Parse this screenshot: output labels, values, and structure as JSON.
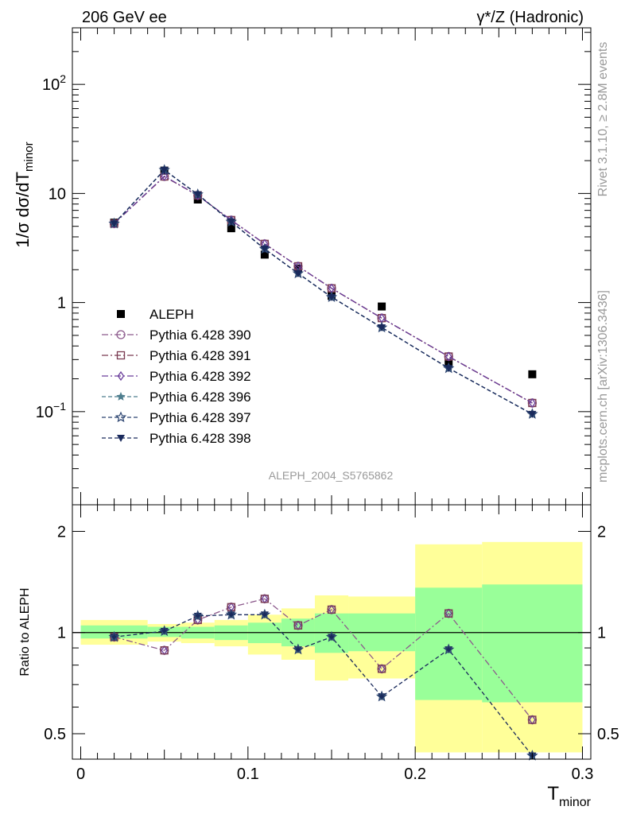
{
  "header": {
    "left": "206 GeV ee",
    "right": "γ*/Z (Hadronic)"
  },
  "side_labels": {
    "rivet": "Rivet 3.1.10, ≥ 2.8M events",
    "mcplots": "mcplots.cern.ch [arXiv:1306.3436]"
  },
  "analysis_id": "ALEPH_2004_S5765862",
  "chart_data": [
    {
      "type": "scatter",
      "panel": "main",
      "ylabel_parts": {
        "a": "1/σ  dσ/dT",
        "sub": "minor"
      },
      "yscale": "log",
      "ylim": [
        0.014,
        330
      ],
      "xlim": [
        -0.005,
        0.305
      ],
      "y_ticks": [
        {
          "v": 100,
          "base": "10",
          "exp": "2"
        },
        {
          "v": 10,
          "base": "10",
          "exp": ""
        },
        {
          "v": 1,
          "base": "1",
          "exp": ""
        },
        {
          "v": 0.1,
          "base": "10",
          "exp": "−1"
        }
      ],
      "legend_position": "left",
      "x": [
        0.02,
        0.05,
        0.07,
        0.09,
        0.11,
        0.13,
        0.15,
        0.18,
        0.22,
        0.27
      ],
      "series": [
        {
          "name": "ALEPH",
          "marker": "square-filled",
          "color": "#000000",
          "line": "none",
          "values": [
            5.4,
            16.2,
            8.8,
            4.8,
            2.75,
            2.05,
            1.15,
            0.92,
            0.28,
            0.22
          ]
        },
        {
          "name": "Pythia 6.428 390",
          "marker": "circle-open",
          "color": "#8c5a8c",
          "line": "dashdot",
          "values": [
            5.3,
            14.3,
            9.6,
            5.7,
            3.45,
            2.15,
            1.35,
            0.72,
            0.32,
            0.12
          ]
        },
        {
          "name": "Pythia 6.428 391",
          "marker": "square-open",
          "color": "#7a3b52",
          "line": "dashdot",
          "values": [
            5.3,
            14.3,
            9.6,
            5.7,
            3.45,
            2.15,
            1.35,
            0.72,
            0.32,
            0.12
          ]
        },
        {
          "name": "Pythia 6.428 392",
          "marker": "diamond-open",
          "color": "#6a3d9a",
          "line": "dashdot",
          "values": [
            5.3,
            14.4,
            9.6,
            5.7,
            3.45,
            2.15,
            1.35,
            0.72,
            0.32,
            0.12
          ]
        },
        {
          "name": "Pythia 6.428 396",
          "marker": "star-filled",
          "color": "#4e7e8e",
          "line": "dashed",
          "values": [
            5.3,
            16.4,
            9.8,
            5.5,
            3.1,
            1.85,
            1.12,
            0.59,
            0.25,
            0.095
          ]
        },
        {
          "name": "Pythia 6.428 397",
          "marker": "star-open",
          "color": "#2c4470",
          "line": "dashed",
          "values": [
            5.3,
            16.4,
            9.8,
            5.5,
            3.1,
            1.85,
            1.12,
            0.59,
            0.25,
            0.095
          ]
        },
        {
          "name": "Pythia 6.428 398",
          "marker": "triangle-down-filled",
          "color": "#1a2a5c",
          "line": "dashed",
          "values": [
            5.3,
            16.4,
            9.8,
            5.5,
            3.1,
            1.85,
            1.12,
            0.59,
            0.25,
            0.095
          ]
        }
      ]
    },
    {
      "type": "scatter",
      "panel": "ratio",
      "ylabel": "Ratio to ALEPH",
      "yscale": "log",
      "ylim": [
        0.42,
        2.4
      ],
      "xlim": [
        -0.005,
        0.305
      ],
      "x_ticks": [
        {
          "v": 0,
          "label": "0"
        },
        {
          "v": 0.1,
          "label": "0.1"
        },
        {
          "v": 0.2,
          "label": "0.2"
        },
        {
          "v": 0.3,
          "label": "0.3"
        }
      ],
      "xlabel_parts": {
        "a": "T",
        "sub": "minor"
      },
      "y_ticks": [
        {
          "v": 2,
          "label": "2"
        },
        {
          "v": 1,
          "label": "1"
        },
        {
          "v": 0.5,
          "label": "0.5"
        }
      ],
      "bins": [
        0,
        0.04,
        0.06,
        0.08,
        0.1,
        0.12,
        0.14,
        0.16,
        0.2,
        0.24,
        0.3
      ],
      "band_total": [
        [
          0.92,
          1.09
        ],
        [
          0.94,
          1.06
        ],
        [
          0.93,
          1.07
        ],
        [
          0.91,
          1.09
        ],
        [
          0.86,
          1.13
        ],
        [
          0.83,
          1.18
        ],
        [
          0.72,
          1.29
        ],
        [
          0.73,
          1.28
        ],
        [
          0.44,
          1.83
        ],
        [
          0.44,
          1.86
        ]
      ],
      "band_stat": [
        [
          0.96,
          1.05
        ],
        [
          0.97,
          1.04
        ],
        [
          0.96,
          1.04
        ],
        [
          0.95,
          1.05
        ],
        [
          0.93,
          1.07
        ],
        [
          0.91,
          1.1
        ],
        [
          0.87,
          1.14
        ],
        [
          0.88,
          1.14
        ],
        [
          0.63,
          1.36
        ],
        [
          0.62,
          1.39
        ]
      ],
      "x": [
        0.02,
        0.05,
        0.07,
        0.09,
        0.11,
        0.13,
        0.15,
        0.18,
        0.22,
        0.27
      ],
      "series": [
        {
          "name": "Pythia 6.428 390",
          "color": "#8c5a8c",
          "line": "dashdot",
          "values": [
            0.97,
            0.885,
            1.09,
            1.19,
            1.26,
            1.05,
            1.17,
            0.78,
            1.14,
            0.55
          ]
        },
        {
          "name": "Pythia 6.428 398",
          "color": "#1a2a5c",
          "line": "dashed",
          "values": [
            0.97,
            1.01,
            1.12,
            1.13,
            1.13,
            0.89,
            0.97,
            0.645,
            0.89,
            0.43
          ]
        }
      ]
    }
  ]
}
